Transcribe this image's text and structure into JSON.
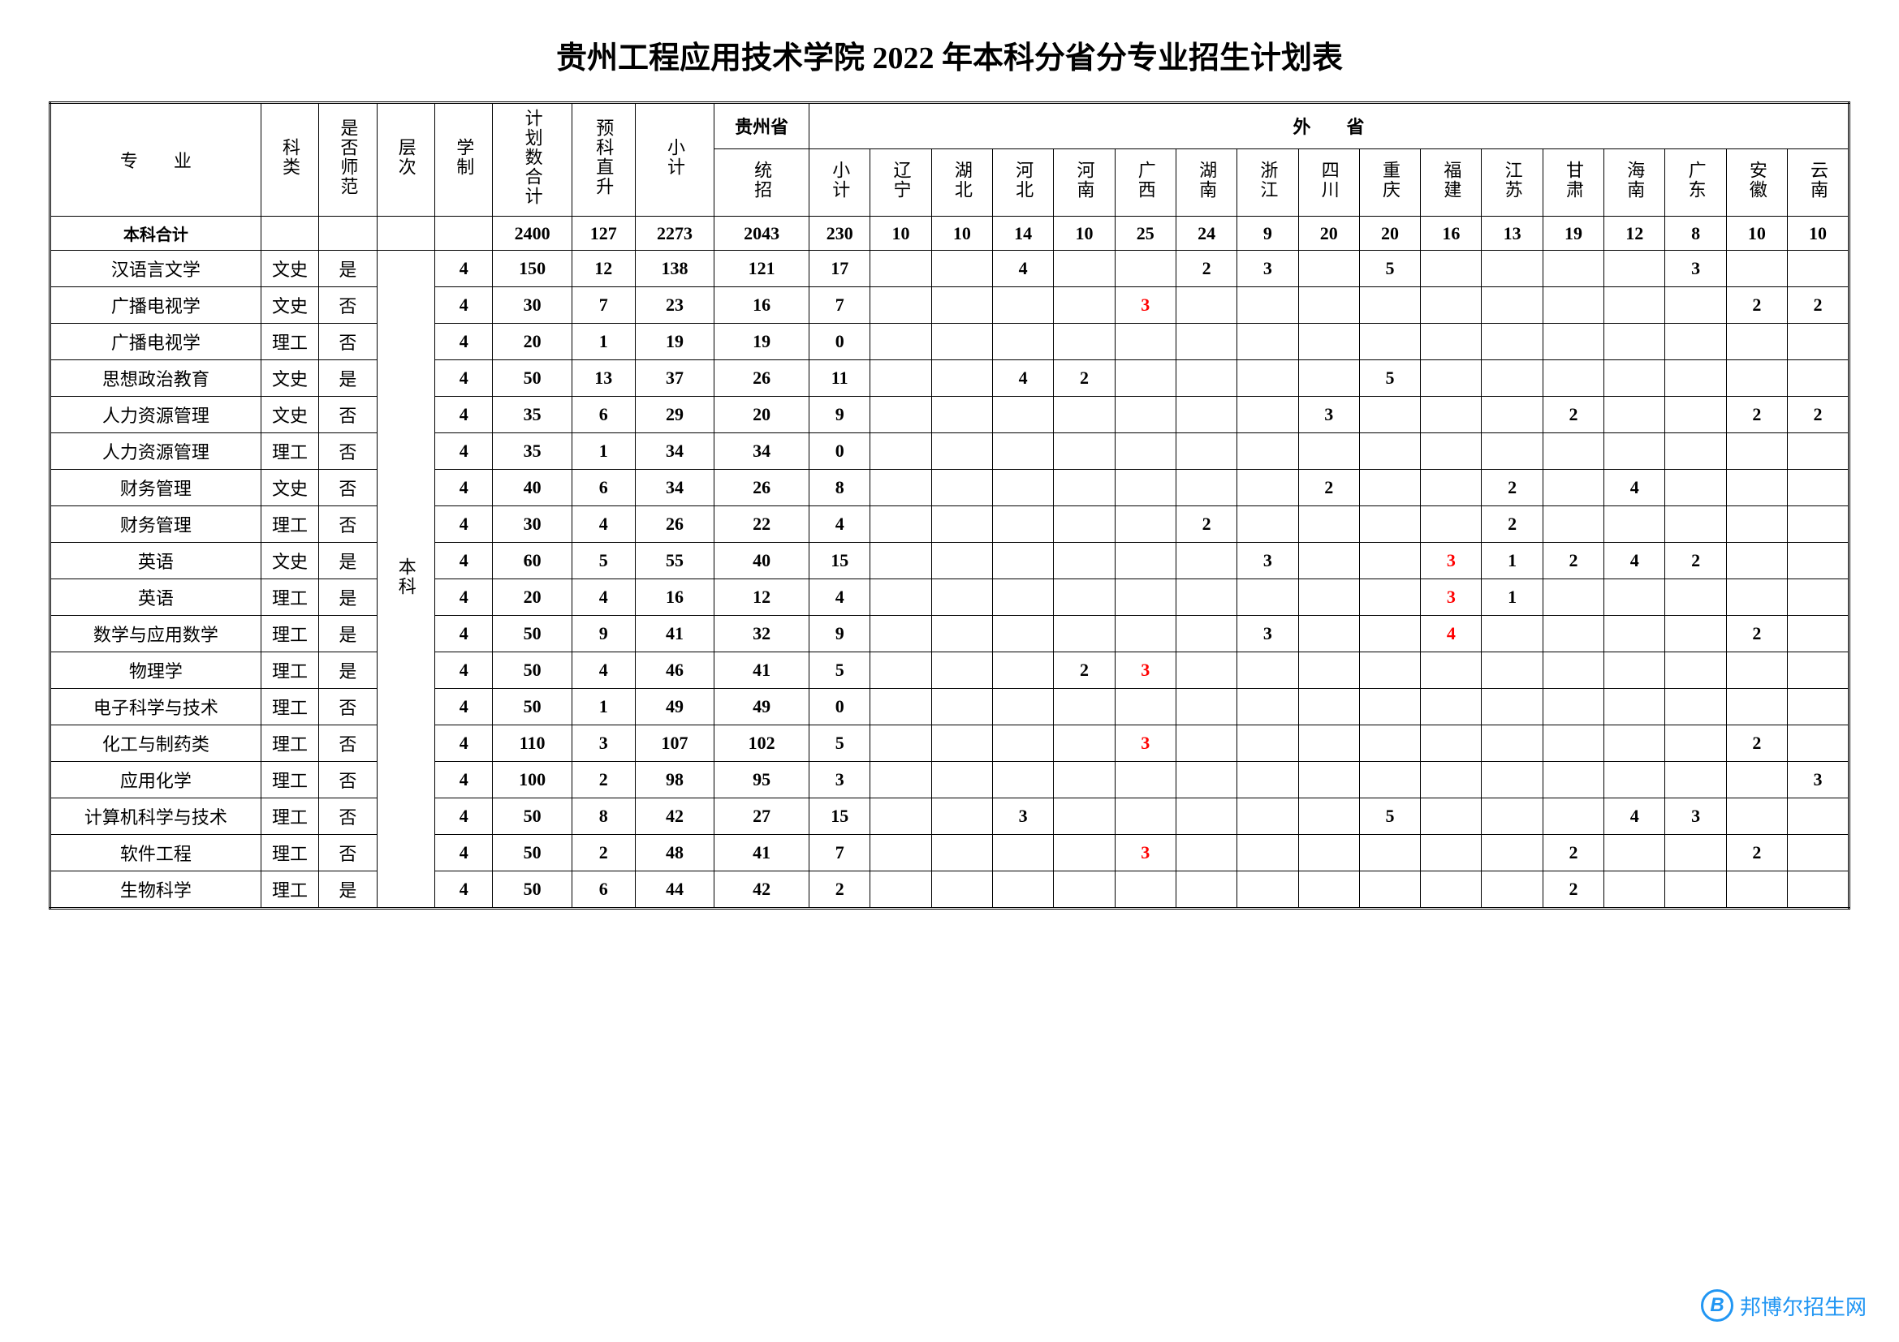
{
  "title": "贵州工程应用技术学院 2022 年本科分省分专业招生计划表",
  "headers": {
    "major": "专　　业",
    "category": "科类",
    "normal": "是否师范",
    "level": "层次",
    "duration": "学制",
    "plan_total": "计划数合计",
    "prep": "预科直升",
    "subtotal": "小计",
    "guizhou_group": "贵州省",
    "guizhou_uni": "统招",
    "other_group": "外　　省",
    "other_sub": "小计",
    "provinces": [
      "辽宁",
      "湖北",
      "河北",
      "河南",
      "广西",
      "湖南",
      "浙江",
      "四川",
      "重庆",
      "福建",
      "江苏",
      "甘肃",
      "海南",
      "广东",
      "安徽",
      "云南"
    ]
  },
  "level_label": "本科",
  "totals_label": "本科合计",
  "totals": {
    "plan_total": "2400",
    "prep": "127",
    "subtotal": "2273",
    "guizhou": "2043",
    "other_sub": "230",
    "p": [
      "10",
      "10",
      "14",
      "10",
      "25",
      "24",
      "9",
      "20",
      "20",
      "16",
      "13",
      "19",
      "12",
      "8",
      "10",
      "10"
    ]
  },
  "rows": [
    {
      "major": "汉语言文学",
      "cat": "文史",
      "norm": "是",
      "dur": "4",
      "total": "150",
      "prep": "12",
      "sub": "138",
      "gz": "121",
      "osub": "17",
      "p": [
        "",
        "",
        "4",
        "",
        "",
        "2",
        "3",
        "",
        "5",
        "",
        "",
        "",
        "",
        "3",
        "",
        ""
      ]
    },
    {
      "major": "广播电视学",
      "cat": "文史",
      "norm": "否",
      "dur": "4",
      "total": "30",
      "prep": "7",
      "sub": "23",
      "gz": "16",
      "osub": "7",
      "p": [
        "",
        "",
        "",
        "",
        {
          "v": "3",
          "red": true
        },
        "",
        "",
        "",
        "",
        "",
        "",
        "",
        "",
        "",
        "2",
        "2"
      ]
    },
    {
      "major": "广播电视学",
      "cat": "理工",
      "norm": "否",
      "dur": "4",
      "total": "20",
      "prep": "1",
      "sub": "19",
      "gz": "19",
      "osub": "0",
      "p": [
        "",
        "",
        "",
        "",
        "",
        "",
        "",
        "",
        "",
        "",
        "",
        "",
        "",
        "",
        "",
        ""
      ]
    },
    {
      "major": "思想政治教育",
      "cat": "文史",
      "norm": "是",
      "dur": "4",
      "total": "50",
      "prep": "13",
      "sub": "37",
      "gz": "26",
      "osub": "11",
      "p": [
        "",
        "",
        "4",
        "2",
        "",
        "",
        "",
        "",
        "5",
        "",
        "",
        "",
        "",
        "",
        "",
        ""
      ]
    },
    {
      "major": "人力资源管理",
      "cat": "文史",
      "norm": "否",
      "dur": "4",
      "total": "35",
      "prep": "6",
      "sub": "29",
      "gz": "20",
      "osub": "9",
      "p": [
        "",
        "",
        "",
        "",
        "",
        "",
        "",
        "3",
        "",
        "",
        "",
        "2",
        "",
        "",
        "2",
        "2"
      ]
    },
    {
      "major": "人力资源管理",
      "cat": "理工",
      "norm": "否",
      "dur": "4",
      "total": "35",
      "prep": "1",
      "sub": "34",
      "gz": "34",
      "osub": "0",
      "p": [
        "",
        "",
        "",
        "",
        "",
        "",
        "",
        "",
        "",
        "",
        "",
        "",
        "",
        "",
        "",
        ""
      ]
    },
    {
      "major": "财务管理",
      "cat": "文史",
      "norm": "否",
      "dur": "4",
      "total": "40",
      "prep": "6",
      "sub": "34",
      "gz": "26",
      "osub": "8",
      "p": [
        "",
        "",
        "",
        "",
        "",
        "",
        "",
        "2",
        "",
        "",
        "2",
        "",
        "4",
        "",
        "",
        ""
      ]
    },
    {
      "major": "财务管理",
      "cat": "理工",
      "norm": "否",
      "dur": "4",
      "total": "30",
      "prep": "4",
      "sub": "26",
      "gz": "22",
      "osub": "4",
      "p": [
        "",
        "",
        "",
        "",
        "",
        "2",
        "",
        "",
        "",
        "",
        "2",
        "",
        "",
        "",
        "",
        ""
      ]
    },
    {
      "major": "英语",
      "cat": "文史",
      "norm": "是",
      "dur": "4",
      "total": "60",
      "prep": "5",
      "sub": "55",
      "gz": "40",
      "osub": "15",
      "p": [
        "",
        "",
        "",
        "",
        "",
        "",
        "3",
        "",
        "",
        {
          "v": "3",
          "red": true
        },
        "1",
        "2",
        "4",
        "2",
        "",
        ""
      ]
    },
    {
      "major": "英语",
      "cat": "理工",
      "norm": "是",
      "dur": "4",
      "total": "20",
      "prep": "4",
      "sub": "16",
      "gz": "12",
      "osub": "4",
      "p": [
        "",
        "",
        "",
        "",
        "",
        "",
        "",
        "",
        "",
        {
          "v": "3",
          "red": true
        },
        "1",
        "",
        "",
        "",
        "",
        ""
      ]
    },
    {
      "major": "数学与应用数学",
      "cat": "理工",
      "norm": "是",
      "dur": "4",
      "total": "50",
      "prep": "9",
      "sub": "41",
      "gz": "32",
      "osub": "9",
      "p": [
        "",
        "",
        "",
        "",
        "",
        "",
        "3",
        "",
        "",
        {
          "v": "4",
          "red": true
        },
        "",
        "",
        "",
        "",
        "2",
        ""
      ]
    },
    {
      "major": "物理学",
      "cat": "理工",
      "norm": "是",
      "dur": "4",
      "total": "50",
      "prep": "4",
      "sub": "46",
      "gz": "41",
      "osub": "5",
      "p": [
        "",
        "",
        "",
        "2",
        {
          "v": "3",
          "red": true
        },
        "",
        "",
        "",
        "",
        "",
        "",
        "",
        "",
        "",
        "",
        ""
      ]
    },
    {
      "major": "电子科学与技术",
      "cat": "理工",
      "norm": "否",
      "dur": "4",
      "total": "50",
      "prep": "1",
      "sub": "49",
      "gz": "49",
      "osub": "0",
      "p": [
        "",
        "",
        "",
        "",
        "",
        "",
        "",
        "",
        "",
        "",
        "",
        "",
        "",
        "",
        "",
        ""
      ]
    },
    {
      "major": "化工与制药类",
      "cat": "理工",
      "norm": "否",
      "dur": "4",
      "total": "110",
      "prep": "3",
      "sub": "107",
      "gz": "102",
      "osub": "5",
      "p": [
        "",
        "",
        "",
        "",
        {
          "v": "3",
          "red": true
        },
        "",
        "",
        "",
        "",
        "",
        "",
        "",
        "",
        "",
        "2",
        ""
      ]
    },
    {
      "major": "应用化学",
      "cat": "理工",
      "norm": "否",
      "dur": "4",
      "total": "100",
      "prep": "2",
      "sub": "98",
      "gz": "95",
      "osub": "3",
      "p": [
        "",
        "",
        "",
        "",
        "",
        "",
        "",
        "",
        "",
        "",
        "",
        "",
        "",
        "",
        "",
        "3"
      ]
    },
    {
      "major": "计算机科学与技术",
      "cat": "理工",
      "norm": "否",
      "dur": "4",
      "total": "50",
      "prep": "8",
      "sub": "42",
      "gz": "27",
      "osub": "15",
      "p": [
        "",
        "",
        "3",
        "",
        "",
        "",
        "",
        "",
        "5",
        "",
        "",
        "",
        "4",
        "3",
        "",
        ""
      ]
    },
    {
      "major": "软件工程",
      "cat": "理工",
      "norm": "否",
      "dur": "4",
      "total": "50",
      "prep": "2",
      "sub": "48",
      "gz": "41",
      "osub": "7",
      "p": [
        "",
        "",
        "",
        "",
        {
          "v": "3",
          "red": true
        },
        "",
        "",
        "",
        "",
        "",
        "",
        "2",
        "",
        "",
        "2",
        ""
      ]
    },
    {
      "major": "生物科学",
      "cat": "理工",
      "norm": "是",
      "dur": "4",
      "total": "50",
      "prep": "6",
      "sub": "44",
      "gz": "42",
      "osub": "2",
      "p": [
        "",
        "",
        "",
        "",
        "",
        "",
        "",
        "",
        "",
        "",
        "",
        "2",
        "",
        "",
        "",
        ""
      ]
    }
  ],
  "watermark": {
    "logo": "B",
    "text": "邦博尔招生网"
  }
}
